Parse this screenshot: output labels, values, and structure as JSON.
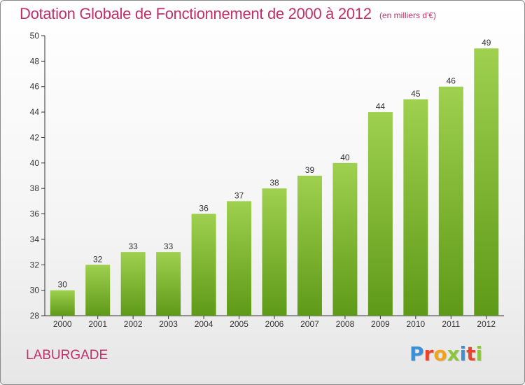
{
  "header": {
    "title": "Dotation Globale de Fonctionnement de 2000 à 2012",
    "unit": "(en milliers d'€)"
  },
  "footer": {
    "commune": "LABURGADE",
    "logo_text": "Proxiti",
    "logo_colors": [
      "#3a8fd6",
      "#e8452c",
      "#f2a21c",
      "#8cc63f",
      "#3a8fd6",
      "#e8452c",
      "#8cc63f"
    ]
  },
  "chart_data": {
    "type": "bar",
    "title": "Dotation Globale de Fonctionnement de 2000 à 2012",
    "subtitle": "(en milliers d'€)",
    "xlabel": "",
    "ylabel": "",
    "categories": [
      "2000",
      "2001",
      "2002",
      "2003",
      "2004",
      "2005",
      "2006",
      "2007",
      "2008",
      "2009",
      "2010",
      "2011",
      "2012"
    ],
    "values": [
      30,
      32,
      33,
      33,
      36,
      37,
      38,
      39,
      40,
      44,
      45,
      46,
      49
    ],
    "ylim": [
      28,
      50
    ],
    "yticks": [
      28,
      30,
      32,
      34,
      36,
      38,
      40,
      42,
      44,
      46,
      48,
      50
    ],
    "grid": false,
    "legend": "none",
    "colors": {
      "bar_top": "#9fd04f",
      "bar_bottom": "#5e9a17",
      "axis": "#333333",
      "text": "#333333",
      "accent": "#c0306a"
    }
  }
}
